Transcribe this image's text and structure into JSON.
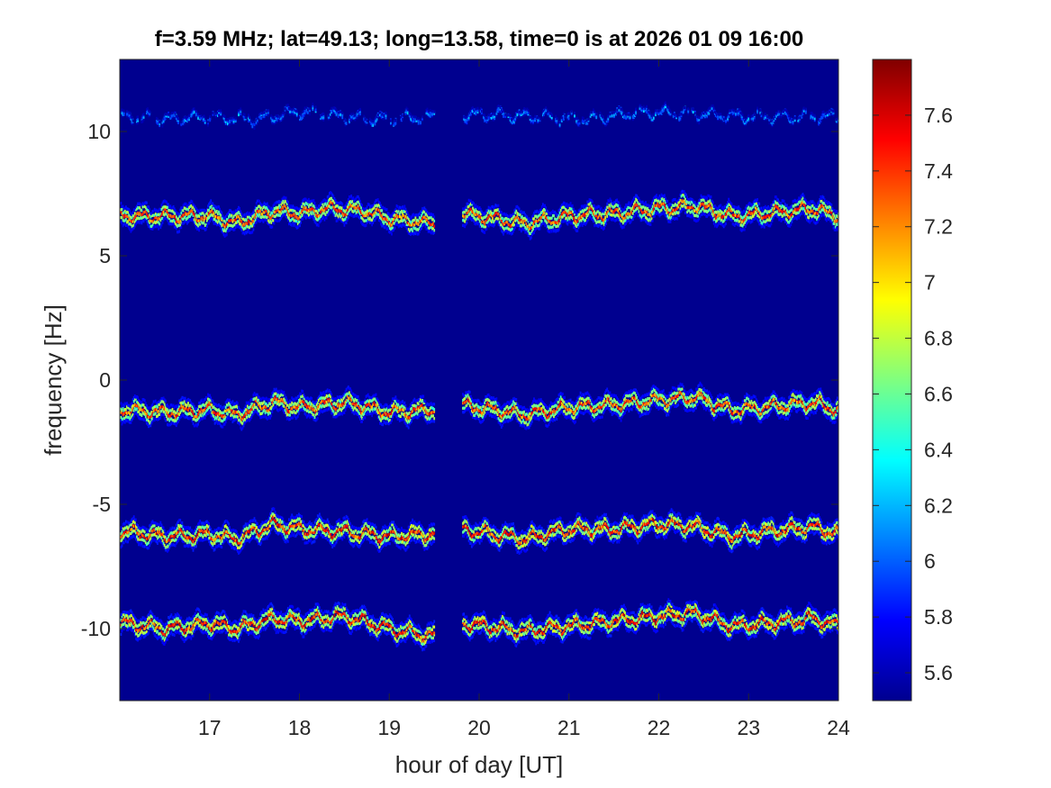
{
  "chart_data": {
    "type": "heatmap",
    "title": "f=3.59 MHz;  lat=49.13; long=13.58, time=0 is at 2026 01 09 16:00",
    "xlabel": "hour of day [UT]",
    "ylabel": "frequency [Hz]",
    "xlim": [
      16.0,
      24.0
    ],
    "ylim": [
      -12.9,
      12.9
    ],
    "xticks": [
      17,
      18,
      19,
      20,
      21,
      22,
      23,
      24
    ],
    "xtick_labels": [
      "17",
      "18",
      "19",
      "20",
      "21",
      "22",
      "23",
      "24"
    ],
    "yticks": [
      10,
      5,
      0,
      -5,
      -10
    ],
    "ytick_labels": [
      "10",
      "5",
      "0",
      "-5",
      "-10"
    ],
    "colormap": "jet",
    "background_color": "#00008f",
    "colorbar": {
      "limits": [
        5.5,
        7.8
      ],
      "ticks": [
        7.6,
        7.4,
        7.2,
        7.0,
        6.8,
        6.6,
        6.4,
        6.2,
        6.0,
        5.8,
        5.6
      ],
      "tick_labels": [
        "7.6",
        "7.4",
        "7.2",
        "7",
        "6.8",
        "6.6",
        "6.4",
        "6.2",
        "6",
        "5.8",
        "5.6"
      ]
    },
    "data_gap": [
      19.5,
      19.8
    ],
    "traces": [
      {
        "center_frequency": 10.6,
        "peak_level": 6.3,
        "approx_frequency": [
          [
            16.05,
            10.6
          ],
          [
            16.5,
            10.5
          ],
          [
            17.0,
            10.6
          ],
          [
            17.5,
            10.5
          ],
          [
            18.0,
            10.8
          ],
          [
            18.5,
            10.6
          ],
          [
            18.8,
            10.5
          ],
          [
            20.0,
            10.7
          ],
          [
            20.7,
            10.6
          ],
          [
            21.2,
            10.5
          ],
          [
            21.8,
            10.8
          ],
          [
            22.5,
            10.7
          ],
          [
            23.0,
            10.6
          ],
          [
            23.5,
            10.6
          ],
          [
            24.0,
            10.6
          ]
        ]
      },
      {
        "center_frequency": 6.6,
        "peak_level": 7.6,
        "approx_frequency": [
          [
            16.05,
            6.6
          ],
          [
            16.5,
            6.6
          ],
          [
            17.0,
            6.6
          ],
          [
            17.3,
            6.3
          ],
          [
            17.7,
            6.8
          ],
          [
            18.0,
            6.7
          ],
          [
            18.3,
            6.9
          ],
          [
            18.7,
            6.8
          ],
          [
            19.0,
            6.5
          ],
          [
            19.45,
            6.3
          ],
          [
            19.8,
            6.7
          ],
          [
            20.5,
            6.3
          ],
          [
            21.0,
            6.6
          ],
          [
            21.5,
            6.7
          ],
          [
            22.0,
            6.9
          ],
          [
            22.4,
            7.0
          ],
          [
            22.8,
            6.6
          ],
          [
            23.2,
            6.7
          ],
          [
            23.7,
            6.9
          ],
          [
            24.0,
            6.6
          ]
        ]
      },
      {
        "center_frequency": -1.1,
        "peak_level": 7.6,
        "approx_frequency": [
          [
            16.05,
            -1.2
          ],
          [
            16.5,
            -1.3
          ],
          [
            17.0,
            -1.2
          ],
          [
            17.3,
            -1.4
          ],
          [
            17.7,
            -0.9
          ],
          [
            18.0,
            -1.1
          ],
          [
            18.5,
            -0.9
          ],
          [
            19.0,
            -1.3
          ],
          [
            19.45,
            -1.2
          ],
          [
            19.8,
            -1.0
          ],
          [
            20.5,
            -1.4
          ],
          [
            21.0,
            -1.1
          ],
          [
            21.5,
            -1.0
          ],
          [
            22.0,
            -0.8
          ],
          [
            22.4,
            -0.7
          ],
          [
            22.8,
            -1.2
          ],
          [
            23.2,
            -1.1
          ],
          [
            23.7,
            -0.9
          ],
          [
            24.0,
            -1.2
          ]
        ]
      },
      {
        "center_frequency": -6.1,
        "peak_level": 7.7,
        "approx_frequency": [
          [
            16.05,
            -6.1
          ],
          [
            16.5,
            -6.3
          ],
          [
            17.0,
            -6.2
          ],
          [
            17.3,
            -6.4
          ],
          [
            17.7,
            -5.8
          ],
          [
            18.0,
            -6.0
          ],
          [
            18.5,
            -6.1
          ],
          [
            19.0,
            -6.3
          ],
          [
            19.45,
            -6.2
          ],
          [
            19.8,
            -6.0
          ],
          [
            20.5,
            -6.4
          ],
          [
            21.0,
            -6.0
          ],
          [
            21.5,
            -6.0
          ],
          [
            22.0,
            -5.8
          ],
          [
            22.4,
            -5.9
          ],
          [
            22.8,
            -6.3
          ],
          [
            23.2,
            -6.1
          ],
          [
            23.7,
            -5.9
          ],
          [
            24.0,
            -6.2
          ]
        ]
      },
      {
        "center_frequency": -9.7,
        "peak_level": 7.7,
        "approx_frequency": [
          [
            16.05,
            -9.8
          ],
          [
            16.5,
            -10.0
          ],
          [
            17.0,
            -9.8
          ],
          [
            17.3,
            -10.0
          ],
          [
            17.7,
            -9.6
          ],
          [
            18.0,
            -9.7
          ],
          [
            18.5,
            -9.5
          ],
          [
            19.0,
            -10.0
          ],
          [
            19.45,
            -10.3
          ],
          [
            19.8,
            -9.8
          ],
          [
            20.5,
            -10.1
          ],
          [
            21.0,
            -9.9
          ],
          [
            21.5,
            -9.7
          ],
          [
            22.0,
            -9.5
          ],
          [
            22.4,
            -9.4
          ],
          [
            22.8,
            -9.9
          ],
          [
            23.2,
            -9.8
          ],
          [
            23.7,
            -9.6
          ],
          [
            24.0,
            -9.9
          ]
        ]
      }
    ]
  }
}
